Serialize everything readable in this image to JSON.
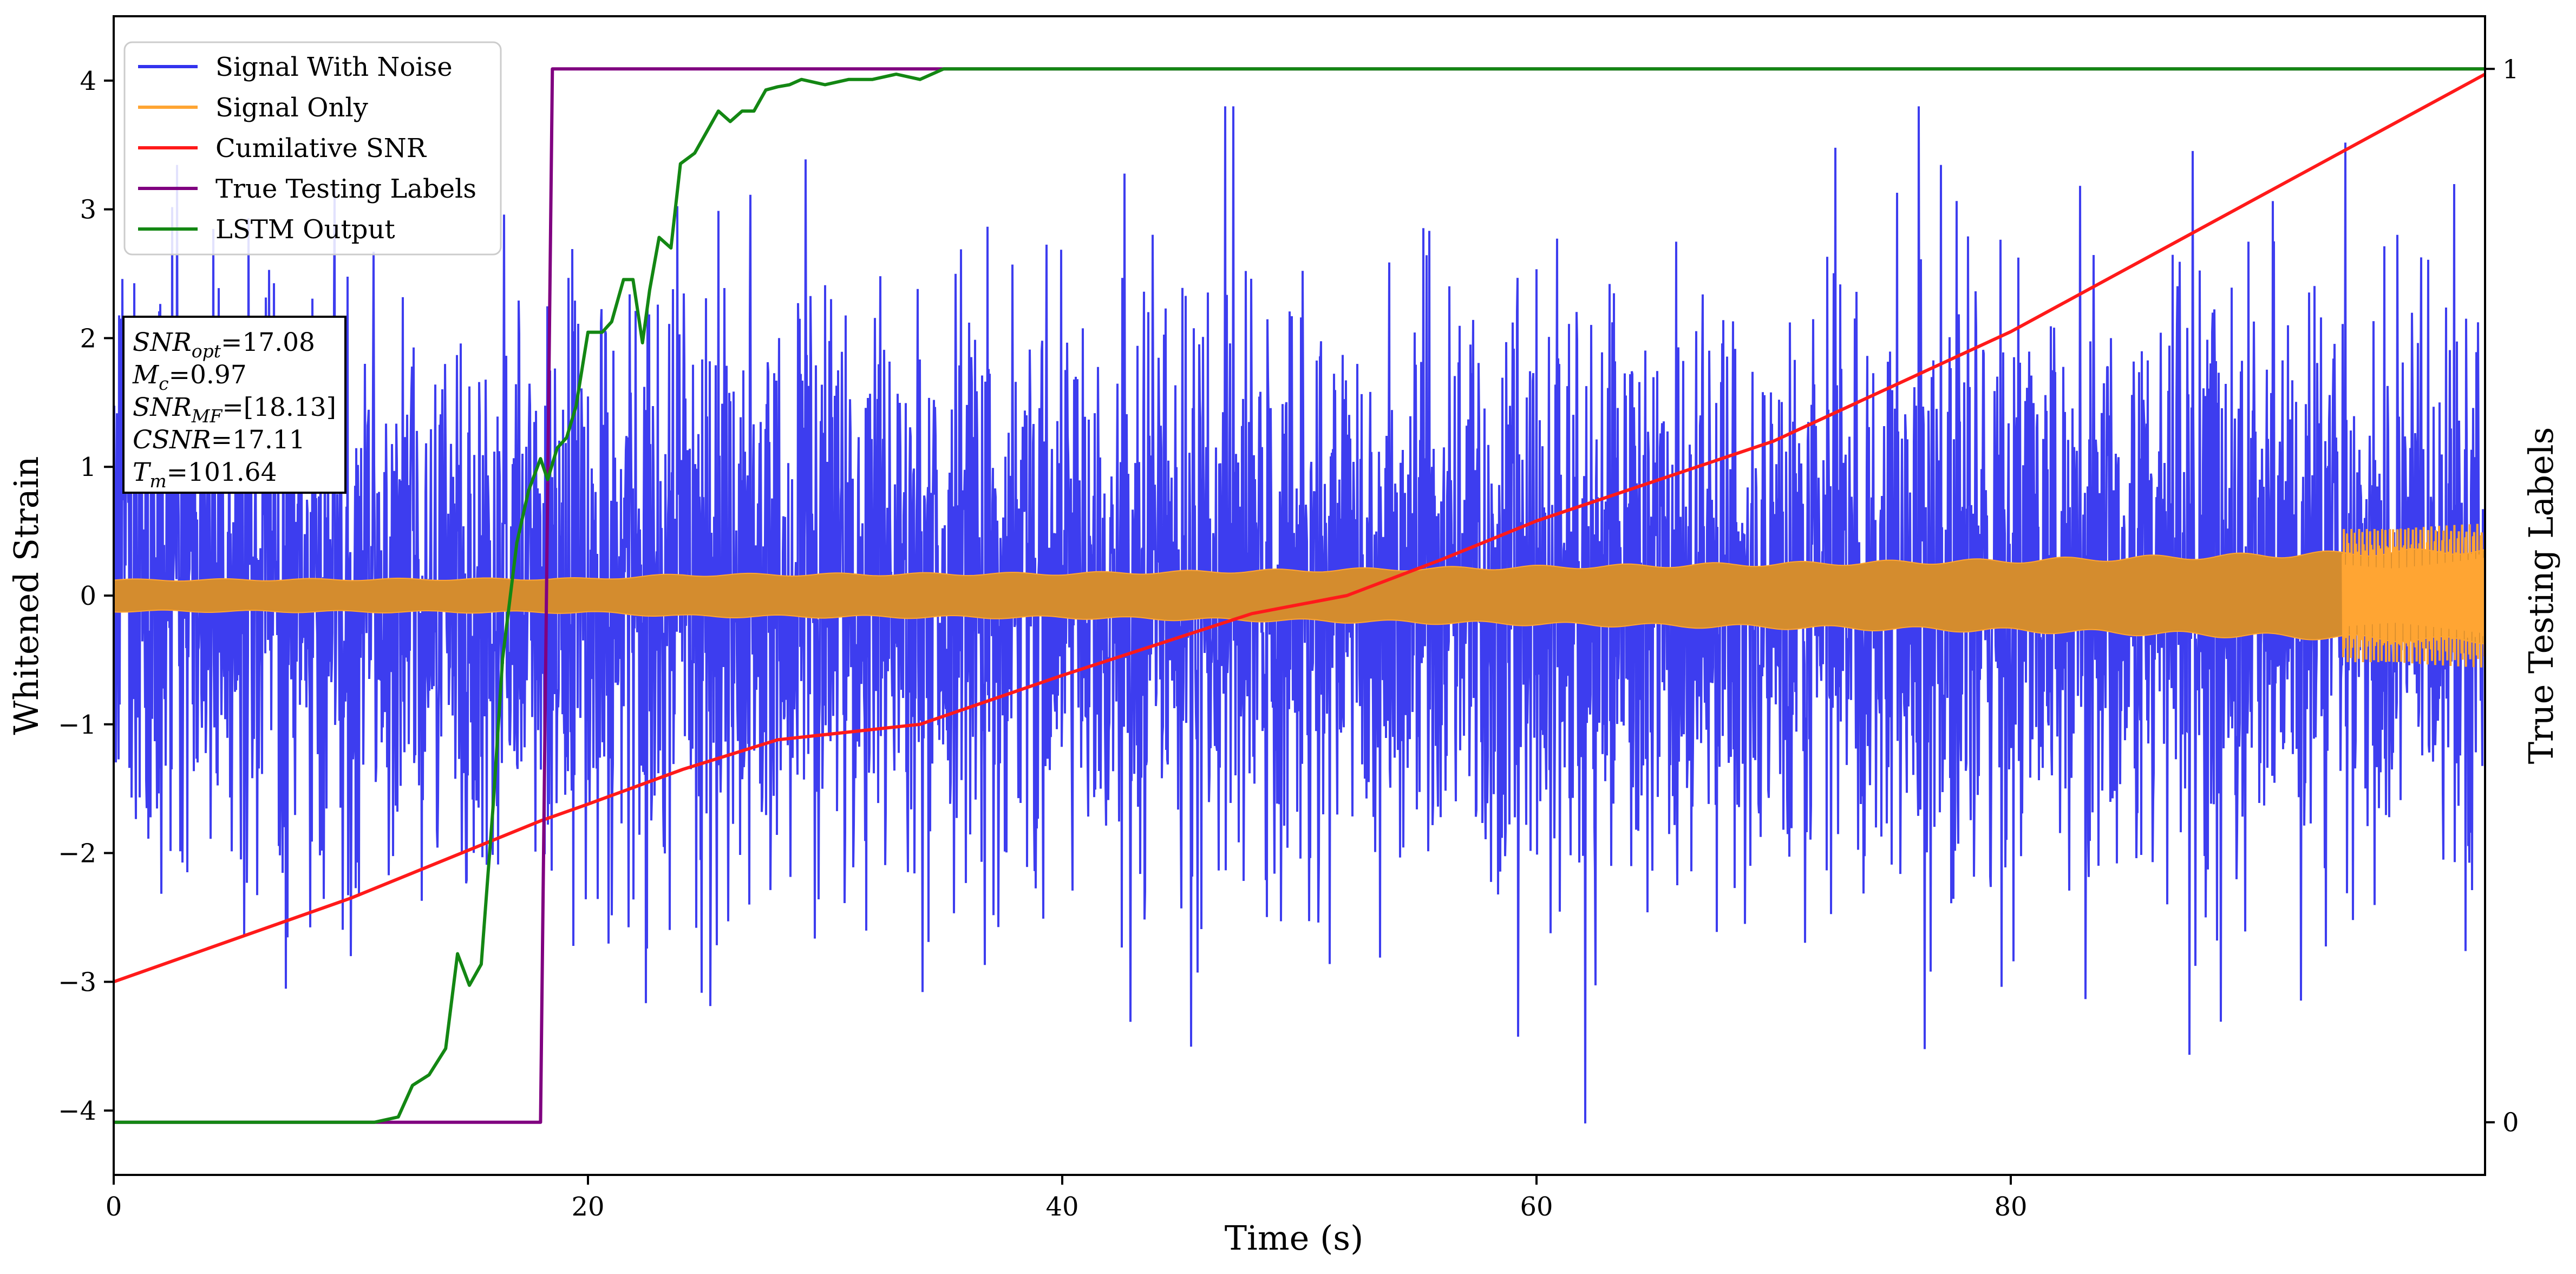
{
  "chart_data": {
    "type": "line",
    "xlabel": "Time (s)",
    "ylabel_left": "Whitened Strain",
    "ylabel_right": "True Testing Labels",
    "xlim": [
      0,
      100
    ],
    "ylim_left": [
      -4.5,
      4.5
    ],
    "ylim_right": [
      -0.05,
      1.05
    ],
    "x_ticks": [
      0,
      20,
      40,
      60,
      80
    ],
    "y_ticks_left": [
      -4,
      -3,
      -2,
      -1,
      0,
      1,
      2,
      3,
      4
    ],
    "y_ticks_right": [
      0,
      1
    ],
    "grid": false,
    "legend_position": "upper-left",
    "legend": [
      {
        "label": "Signal With Noise",
        "color": "#3333ee"
      },
      {
        "label": "Signal Only",
        "color": "#ffa533"
      },
      {
        "label": "Cumilative SNR",
        "color": "#ff1a1a"
      },
      {
        "label": "True Testing Labels",
        "color": "#800080"
      },
      {
        "label": "LSTM Output",
        "color": "#138713"
      }
    ],
    "annotation": {
      "lines": [
        {
          "base": "SNR",
          "sub": "opt",
          "text": "=17.08"
        },
        {
          "base": "M",
          "sub": "c",
          "text": "=0.97"
        },
        {
          "base": "SNR",
          "sub": "MF",
          "text": "=[18.13]"
        },
        {
          "base": "CSNR",
          "sub": "",
          "text": "=17.11"
        },
        {
          "base": "T",
          "sub": "m",
          "text": "=101.64"
        }
      ]
    },
    "series": [
      {
        "name": "Signal With Noise",
        "axis": "left",
        "color": "#3333ee",
        "description": "dense noisy whitened strain, amplitude mostly within +/-2.5, peaks near +3.8 and -4.1",
        "envelope_max": 3.8,
        "envelope_min": -4.1
      },
      {
        "name": "Signal Only",
        "axis": "left",
        "color": "#ffa533",
        "description": "chirp signal, amplitude about 0.12 growing to about 0.35 near the end",
        "amplitude_x": [
          0,
          20,
          24,
          40,
          60,
          80,
          100
        ],
        "amplitude_y": [
          0.12,
          0.13,
          0.16,
          0.17,
          0.22,
          0.27,
          0.35
        ]
      },
      {
        "name": "Cumilative SNR",
        "axis": "left",
        "color": "#ff1a1a",
        "x": [
          0,
          10,
          18,
          20,
          24,
          28,
          34,
          40,
          48,
          52,
          56,
          60,
          70,
          80,
          90,
          100
        ],
        "y": [
          -3.0,
          -2.35,
          -1.75,
          -1.62,
          -1.35,
          -1.12,
          -1.0,
          -0.62,
          -0.14,
          0.0,
          0.28,
          0.58,
          1.2,
          2.05,
          3.05,
          4.05
        ]
      },
      {
        "name": "True Testing Labels",
        "axis": "right",
        "color": "#800080",
        "x": [
          0,
          18.0,
          18.5,
          100
        ],
        "y": [
          0,
          0,
          1,
          1
        ]
      },
      {
        "name": "LSTM Output",
        "axis": "right",
        "color": "#138713",
        "x": [
          0,
          11,
          12,
          12.6,
          13.3,
          14,
          14.5,
          15,
          15.5,
          16,
          16.4,
          17,
          17.5,
          18,
          18.3,
          18.7,
          19.1,
          19.5,
          20,
          20.6,
          21,
          21.5,
          21.9,
          22.3,
          22.6,
          23.0,
          23.5,
          23.9,
          24.5,
          25,
          25.5,
          26,
          26.5,
          27,
          27.5,
          28,
          28.5,
          29,
          30,
          31,
          32,
          33,
          34,
          35,
          36,
          37,
          38,
          39,
          40,
          100
        ],
        "y": [
          0,
          0,
          0.005,
          0.035,
          0.045,
          0.07,
          0.16,
          0.13,
          0.15,
          0.3,
          0.44,
          0.55,
          0.6,
          0.63,
          0.61,
          0.64,
          0.65,
          0.68,
          0.75,
          0.75,
          0.76,
          0.8,
          0.8,
          0.74,
          0.79,
          0.84,
          0.83,
          0.91,
          0.92,
          0.94,
          0.96,
          0.95,
          0.96,
          0.96,
          0.98,
          0.983,
          0.985,
          0.99,
          0.985,
          0.99,
          0.99,
          0.995,
          0.99,
          1.0,
          1.0,
          1.0,
          1.0,
          1.0,
          1.0,
          1.0
        ]
      }
    ]
  }
}
